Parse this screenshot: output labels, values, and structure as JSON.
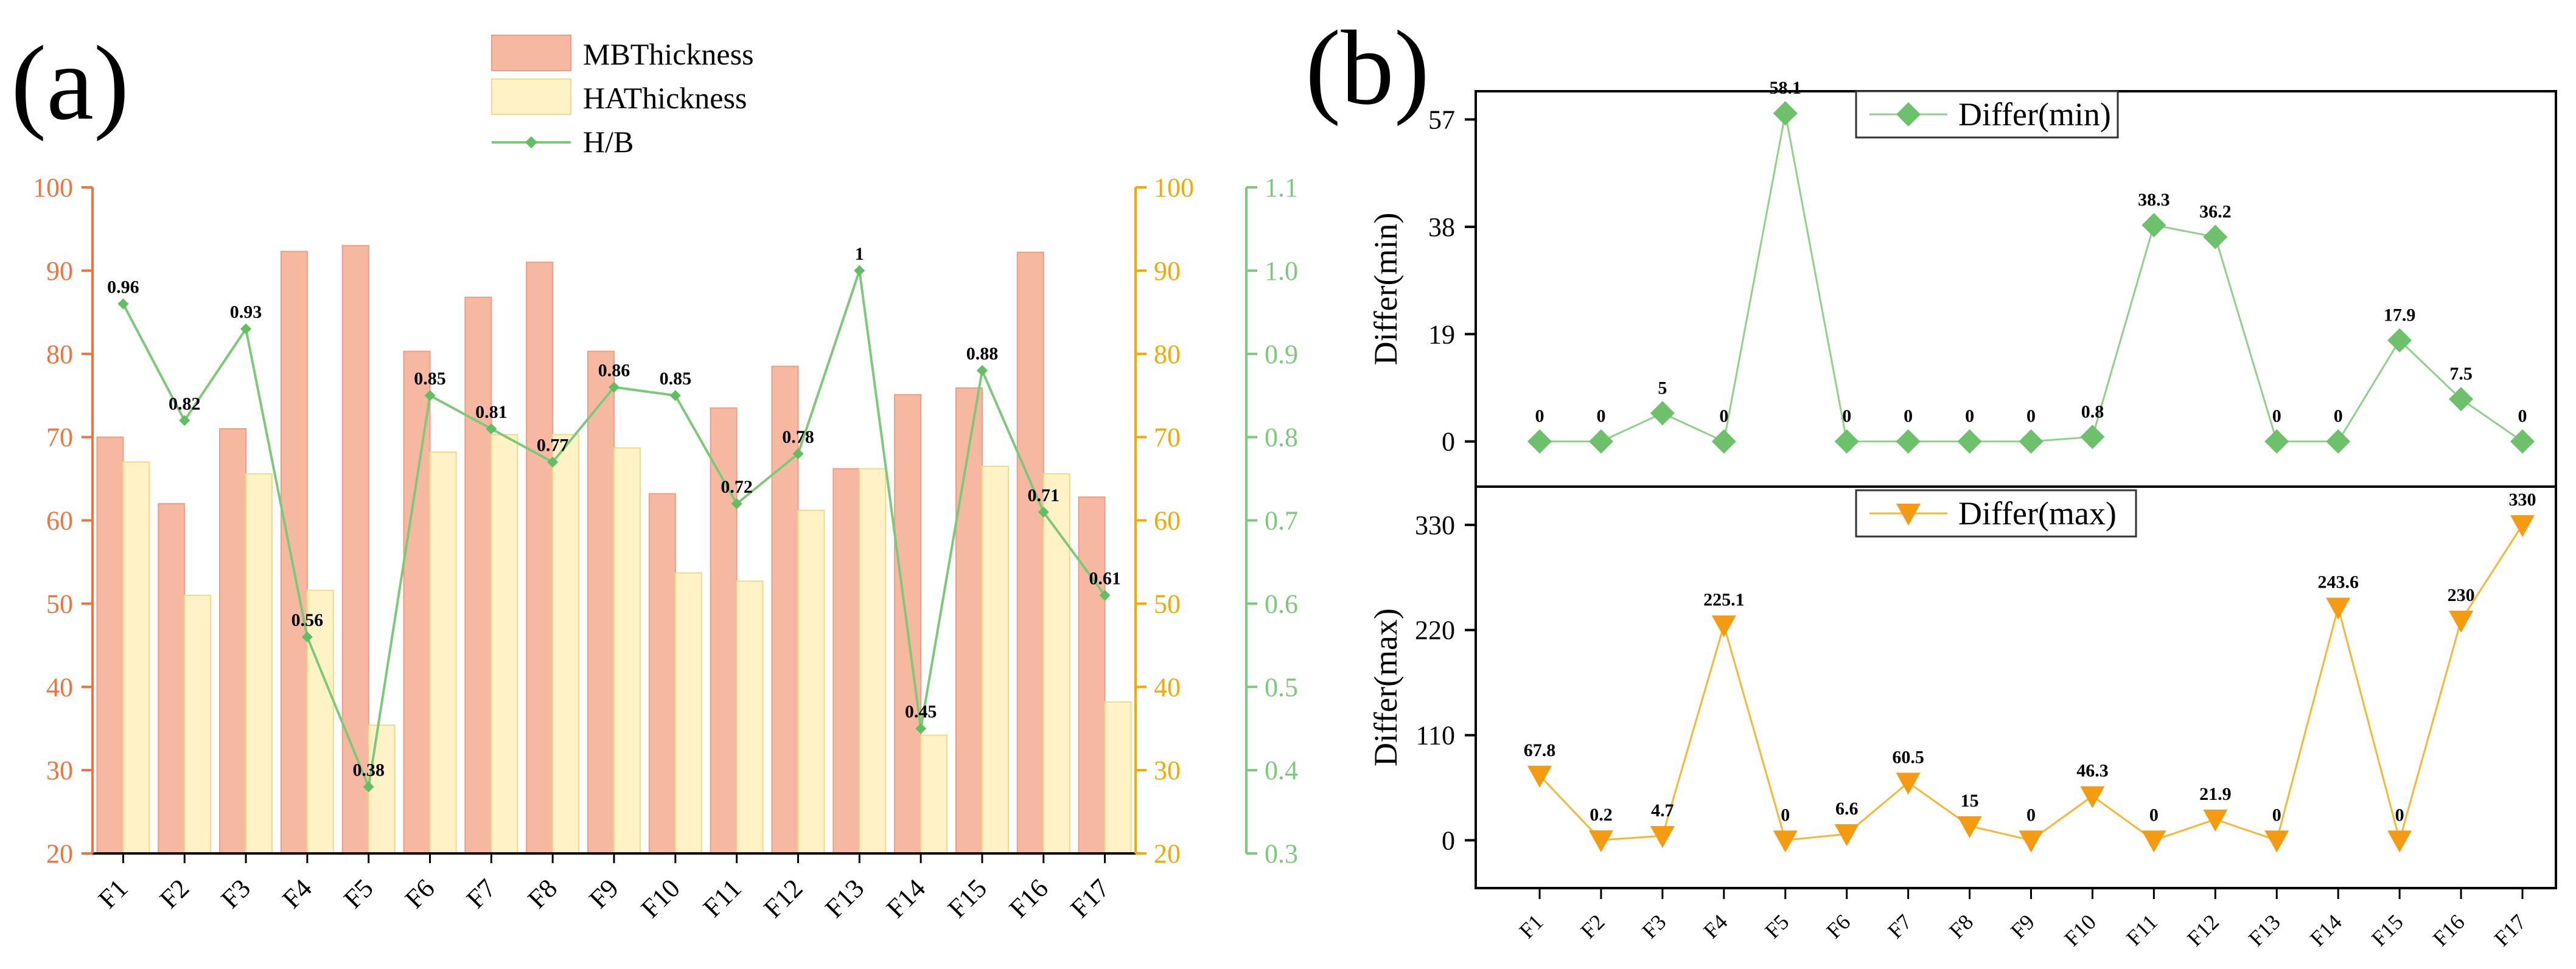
{
  "panel_a_label": "(a)",
  "panel_b_label": "(b)",
  "colors": {
    "mb_fill": "#f7b8a2",
    "mb_edge": "#ee9d83",
    "ha_fill": "#fff2c6",
    "ha_edge": "#f0da8a",
    "hb_line": "#7cc97a",
    "hb_marker": "#62be60",
    "min_line": "#8fd18a",
    "min_marker": "#6cc16a",
    "max_line": "#f7b733",
    "max_marker": "#f59b12",
    "left_axis": "#f0733c",
    "mid_axis": "#f5a800",
    "right_axis": "#7dc97b",
    "axis": "#000000"
  },
  "chart_data": [
    {
      "type": "bar",
      "panel": "a",
      "title": "",
      "xlabel": "",
      "categories": [
        "F1",
        "F2",
        "F3",
        "F4",
        "F5",
        "F6",
        "F7",
        "F8",
        "F9",
        "F10",
        "F11",
        "F12",
        "F13",
        "F14",
        "F15",
        "F16",
        "F17"
      ],
      "series": [
        {
          "name": "MBThickness",
          "axis": "left",
          "values": [
            70,
            62,
            71,
            92.3,
            93,
            80.3,
            86.8,
            91,
            80.3,
            63.2,
            73.5,
            78.5,
            66.2,
            75.1,
            75.9,
            92.2,
            62.8
          ]
        },
        {
          "name": "HAThickness",
          "axis": "middle",
          "values": [
            67,
            51,
            65.6,
            51.6,
            35.4,
            68.2,
            70.3,
            70.3,
            68.7,
            53.7,
            52.7,
            61.2,
            66.2,
            34.2,
            66.5,
            65.6,
            38.2
          ]
        },
        {
          "name": "H/B",
          "type": "line",
          "axis": "right",
          "values": [
            0.96,
            0.82,
            0.93,
            0.56,
            0.38,
            0.85,
            0.81,
            0.77,
            0.86,
            0.85,
            0.72,
            0.78,
            1.0,
            0.45,
            0.88,
            0.71,
            0.61
          ],
          "labels": [
            "0.96",
            "0.82",
            "0.93",
            "0.56",
            "0.38",
            "0.85",
            "0.81",
            "0.77",
            "0.86",
            "0.85",
            "0.72",
            "0.78",
            "1",
            "0.45",
            "0.88",
            "0.71",
            "0.61"
          ]
        }
      ],
      "axes": {
        "left": {
          "range": [
            20,
            100
          ],
          "ticks": [
            "20",
            "30",
            "40",
            "50",
            "60",
            "70",
            "80",
            "90",
            "100"
          ]
        },
        "middle": {
          "range": [
            20,
            100
          ],
          "ticks": [
            "20",
            "30",
            "40",
            "50",
            "60",
            "70",
            "80",
            "90",
            "100"
          ]
        },
        "right": {
          "range": [
            0.3,
            1.1
          ],
          "ticks": [
            "0.3",
            "0.4",
            "0.5",
            "0.6",
            "0.7",
            "0.8",
            "0.9",
            "1.0",
            "1.1"
          ]
        }
      },
      "legend": {
        "position": "top-center",
        "entries": [
          "MBThickness",
          "HAThickness",
          "H/B"
        ]
      }
    },
    {
      "type": "line",
      "panel": "b-top",
      "title": "",
      "ylabel": "Differ(min)",
      "series": [
        {
          "name": "Differ(min)",
          "values": [
            0,
            0,
            5,
            0,
            58.1,
            0,
            0,
            0,
            0,
            0.8,
            38.3,
            36.2,
            0,
            0,
            17.9,
            7.5,
            0
          ],
          "labels": [
            "0",
            "0",
            "5",
            "0",
            "58.1",
            "0",
            "0",
            "0",
            "0",
            "0.8",
            "38.3",
            "36.2",
            "0",
            "0",
            "17.9",
            "7.5",
            "0"
          ]
        }
      ],
      "ylim": [
        -8,
        62
      ],
      "yticks": [
        "0",
        "19",
        "38",
        "57"
      ],
      "legend": {
        "position": "top-center",
        "entries": [
          "Differ(min)"
        ]
      }
    },
    {
      "type": "line",
      "panel": "b-bottom",
      "title": "",
      "ylabel": "Differ(max)",
      "categories": [
        "F1",
        "F2",
        "F3",
        "F4",
        "F5",
        "F6",
        "F7",
        "F8",
        "F9",
        "F10",
        "F11",
        "F12",
        "F13",
        "F14",
        "F15",
        "F16",
        "F17"
      ],
      "series": [
        {
          "name": "Differ(max)",
          "values": [
            67.8,
            0.2,
            4.7,
            225.1,
            0,
            6.6,
            60.5,
            15,
            0,
            46.3,
            0,
            21.9,
            0,
            243.6,
            0,
            230,
            330
          ],
          "labels": [
            "67.8",
            "0.2",
            "4.7",
            "225.1",
            "0",
            "6.6",
            "60.5",
            "15",
            "0",
            "46.3",
            "0",
            "21.9",
            "0",
            "243.6",
            "0",
            "230",
            "330"
          ]
        }
      ],
      "ylim": [
        -50,
        370
      ],
      "yticks": [
        "0",
        "110",
        "220",
        "330"
      ],
      "legend": {
        "position": "top-center",
        "entries": [
          "Differ(max)"
        ]
      }
    }
  ]
}
